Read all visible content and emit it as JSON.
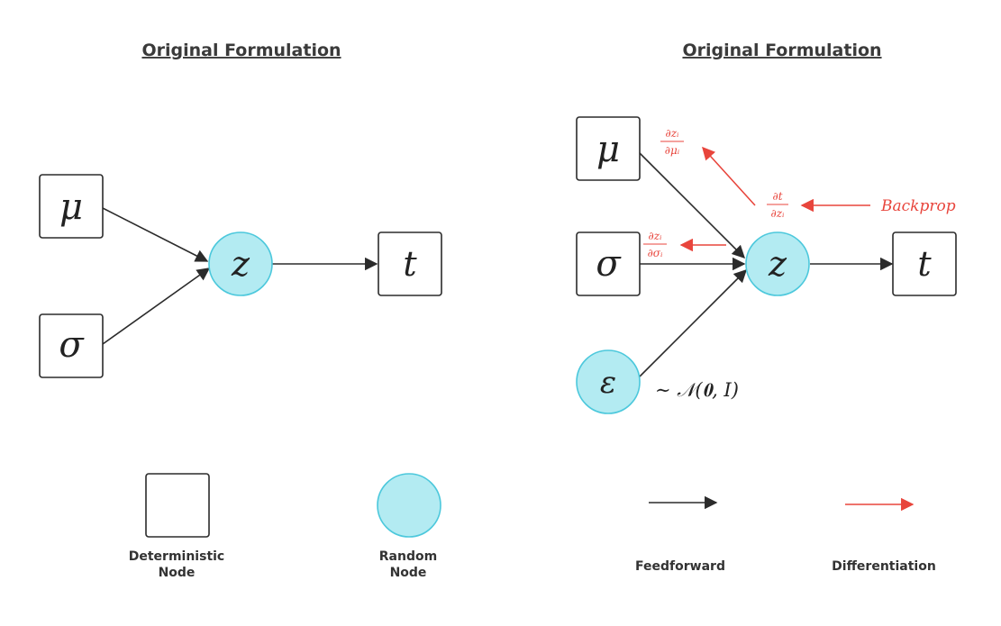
{
  "panels": {
    "left": {
      "title": "Original Formulation"
    },
    "right": {
      "title": "Original Formulation"
    }
  },
  "nodes": {
    "mu": "μ",
    "sigma": "σ",
    "z": "z",
    "t": "t",
    "epsilon": "ε"
  },
  "annotations": {
    "distribution": "∼ 𝒩(𝟎, I)",
    "backprop": "Backprop",
    "dz_dmu": {
      "num": "∂zᵢ",
      "den": "∂μᵢ"
    },
    "dt_dz": {
      "num": "∂t",
      "den": "∂zᵢ"
    },
    "dz_dsigma": {
      "num": "∂zᵢ",
      "den": "∂σᵢ"
    }
  },
  "legend": {
    "deterministic_line1": "Deterministic",
    "deterministic_line2": "Node",
    "random_line1": "Random",
    "random_line2": "Node",
    "feedforward": "Feedforward",
    "differentiation": "Differentiation"
  },
  "colors": {
    "random_fill": "#b3ebf2",
    "random_stroke": "#4cc8dc",
    "diff_arrow": "#e8453c",
    "ff_arrow": "#2b2b2b"
  }
}
